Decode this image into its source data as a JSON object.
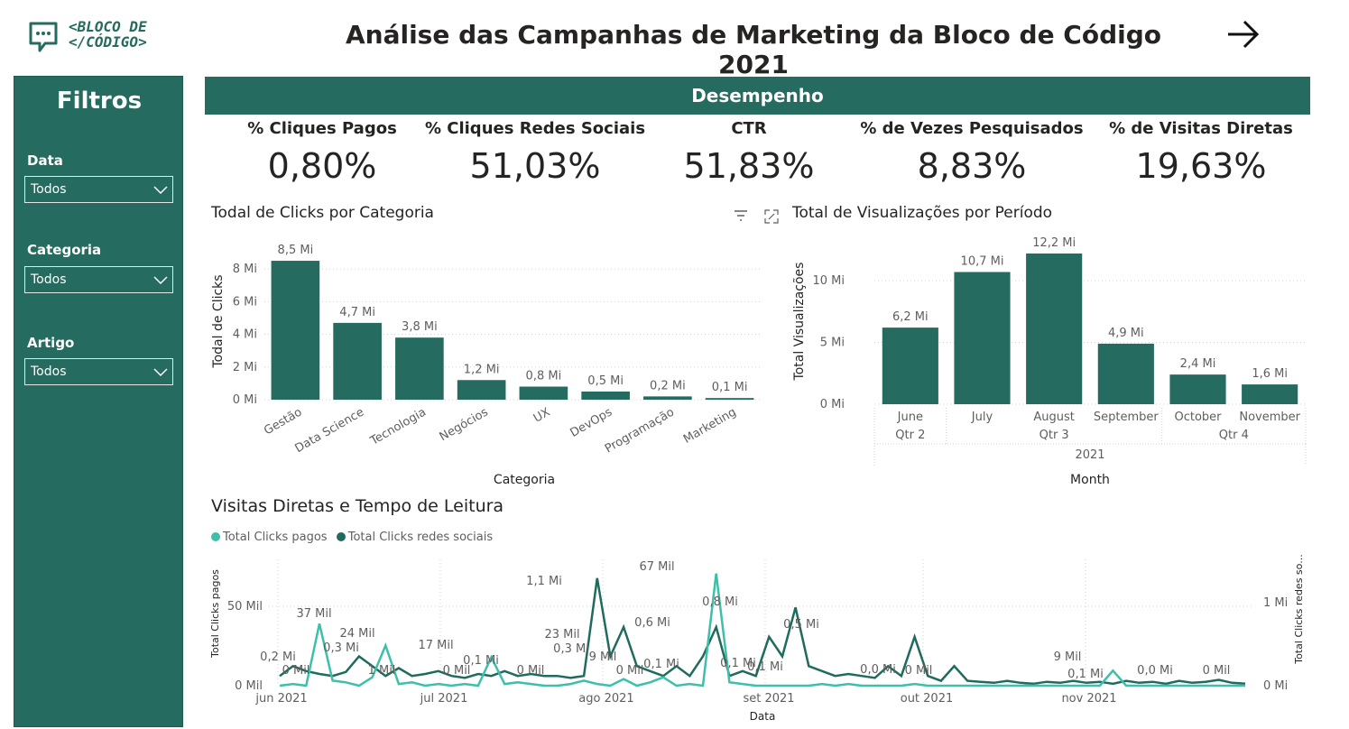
{
  "header": {
    "logo_line1": "<BLOCO DE",
    "logo_line2": "</CÓDIGO>",
    "title": "Análise das Campanhas de Marketing da Bloco de Código 2021",
    "next_icon": "arrow-right-icon"
  },
  "sidebar": {
    "title": "Filtros",
    "filters": [
      {
        "label": "Data",
        "value": "Todos"
      },
      {
        "label": "Categoria",
        "value": "Todos"
      },
      {
        "label": "Artigo",
        "value": "Todos"
      }
    ]
  },
  "section_title": "Desempenho",
  "kpis": [
    {
      "label": "% Cliques Pagos",
      "value": "0,80%"
    },
    {
      "label": "% Cliques Redes Sociais",
      "value": "51,03%"
    },
    {
      "label": "CTR",
      "value": "51,83%"
    },
    {
      "label": "% de Vezes Pesquisados",
      "value": "8,83%"
    },
    {
      "label": "% de Visitas Diretas",
      "value": "19,63%"
    }
  ],
  "colors": {
    "primary": "#256b5f",
    "light_series": "#3dbfa9",
    "dark_series": "#1f6b5e"
  },
  "chart_data": [
    {
      "type": "bar",
      "title": "Todal de Clicks por Categoria",
      "xlabel": "Categoria",
      "ylabel": "Todal de Clicks",
      "ylim": [
        0,
        9
      ],
      "yticks": [
        "0 Mi",
        "2 Mi",
        "4 Mi",
        "6 Mi",
        "8 Mi"
      ],
      "categories": [
        "Gestão",
        "Data Science",
        "Tecnologia",
        "Negócios",
        "UX",
        "DevOps",
        "Programação",
        "Marketing"
      ],
      "values": [
        8.5,
        4.7,
        3.8,
        1.2,
        0.8,
        0.5,
        0.2,
        0.1
      ],
      "labels": [
        "8,5 Mi",
        "4,7 Mi",
        "3,8 Mi",
        "1,2 Mi",
        "0,8 Mi",
        "0,5 Mi",
        "0,2 Mi",
        "0,1 Mi"
      ]
    },
    {
      "type": "bar",
      "title": "Total de Visualizações por Período",
      "xlabel": "Month",
      "ylabel": "Total Visualizações",
      "ylim": [
        0,
        13
      ],
      "yticks": [
        "0 Mi",
        "5 Mi",
        "10 Mi"
      ],
      "categories": [
        "June",
        "July",
        "August",
        "September",
        "October",
        "November"
      ],
      "quarters": [
        "Qtr 2",
        "Qtr 3",
        "Qtr 4"
      ],
      "year": "2021",
      "values": [
        6.2,
        10.7,
        12.2,
        4.9,
        2.4,
        1.6
      ],
      "labels": [
        "6,2 Mi",
        "10,7 Mi",
        "12,2 Mi",
        "4,9 Mi",
        "2,4 Mi",
        "1,6 Mi"
      ]
    },
    {
      "type": "line",
      "title": "Visitas Diretas e Tempo de Leitura",
      "xlabel": "Data",
      "ylabel": "Total Clicks pagos",
      "ylabel_right": "Total Clicks redes so...",
      "xticks": [
        "jun 2021",
        "jul 2021",
        "ago 2021",
        "set 2021",
        "out 2021",
        "nov 2021"
      ],
      "yticks_left": [
        "0 Mil",
        "50 Mil"
      ],
      "yticks_right": [
        "0 Mi",
        "1 Mi"
      ],
      "series": [
        {
          "name": "Total Clicks pagos",
          "values": [
            0,
            1,
            0,
            37,
            3,
            2,
            0,
            5,
            24,
            1,
            2,
            0,
            1,
            0,
            1,
            0,
            17,
            1,
            2,
            1,
            0,
            0,
            1,
            3,
            1,
            0,
            4,
            0,
            2,
            5,
            0,
            1,
            0,
            67,
            2,
            1,
            0,
            0,
            0,
            0,
            0,
            1,
            0,
            1,
            0,
            0,
            0,
            0,
            1,
            0,
            0,
            0,
            0,
            0,
            0,
            0,
            0,
            0,
            0,
            0,
            0,
            0,
            0,
            9,
            0,
            0,
            0,
            0,
            0,
            0,
            0,
            0,
            0,
            0
          ]
        },
        {
          "name": "Total Clicks redes sociais",
          "values": [
            0.1,
            0.2,
            0.15,
            0.12,
            0.1,
            0.14,
            0.3,
            0.2,
            0.1,
            0.18,
            0.1,
            0.12,
            0.15,
            0.1,
            0.08,
            0.12,
            0.1,
            0.15,
            0.1,
            0.12,
            0.1,
            0.1,
            0.08,
            0.1,
            1.1,
            0.3,
            0.6,
            0.2,
            0.15,
            0.1,
            0.2,
            0.1,
            0.3,
            0.6,
            0.1,
            0.15,
            0.1,
            0.5,
            0.3,
            0.8,
            0.2,
            0.15,
            0.1,
            0.12,
            0.1,
            0.08,
            0.2,
            0.1,
            0.5,
            0.1,
            0.05,
            0.2,
            0.05,
            0.04,
            0.03,
            0.05,
            0.03,
            0.02,
            0.04,
            0.03,
            0.05,
            0.03,
            0.04,
            0.02,
            0.05,
            0.03,
            0.04,
            0.02,
            0.05,
            0.03,
            0.04,
            0.06,
            0.03,
            0.02
          ]
        }
      ],
      "data_labels": [
        "0,2 Mi",
        "0 Mil",
        "37 Mil",
        "0,3 Mi",
        "24 Mil",
        "1 Mil",
        "17 Mil",
        "0 Mil",
        "0,1 Mi",
        "1,1 Mi",
        "0 Mil",
        "23 Mil",
        "0,3 Mi",
        "9 Mil",
        "0 Mil",
        "67 Mil",
        "0,6 Mi",
        "0,1 Mi",
        "0,8 Mi",
        "0,1 Mi",
        "0,1 Mi",
        "0,5 Mi",
        "0,0 Mi",
        "0 Mil",
        "9 Mil",
        "0,1 Mi",
        "0,0 Mi",
        "0 Mil"
      ]
    }
  ]
}
